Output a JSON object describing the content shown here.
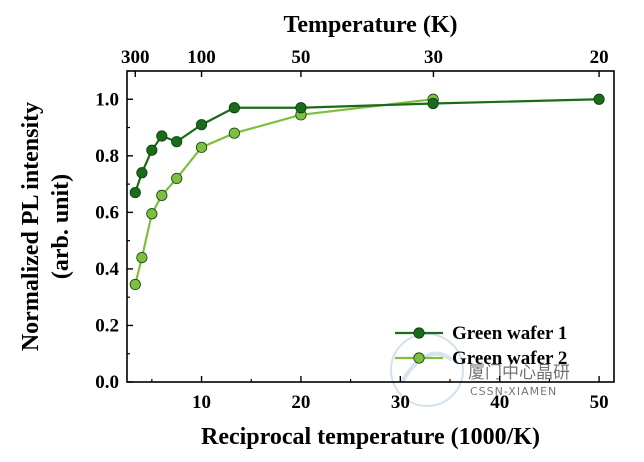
{
  "chart_data": {
    "type": "line",
    "title": "",
    "xlabel": "Reciprocal temperature (1000/K)",
    "ylabel": "Normalized PL intensity (arb. unit)",
    "ylabel_lines": [
      "Normalized PL intensity",
      "(arb. unit)"
    ],
    "top_xlabel": "Temperature (K)",
    "xlim": [
      2.5,
      51.5
    ],
    "ylim": [
      0.0,
      1.1
    ],
    "x_ticks": [
      10,
      20,
      30,
      40,
      50
    ],
    "y_ticks": [
      0.0,
      0.2,
      0.4,
      0.6,
      0.8,
      1.0
    ],
    "y_tick_labels": [
      "0.0",
      "0.2",
      "0.4",
      "0.6",
      "0.8",
      "1.0"
    ],
    "top_ticks": [
      {
        "label": "300",
        "value": 300
      },
      {
        "label": "100",
        "value": 100
      },
      {
        "label": "50",
        "value": 50
      },
      {
        "label": "30",
        "value": 30
      },
      {
        "label": "20",
        "value": 20
      }
    ],
    "grid": false,
    "legend_position": "bottom-right",
    "series": [
      {
        "name": "Green wafer 1",
        "color": "#1a6b1a",
        "x": [
          3.33,
          4.0,
          5.0,
          6.0,
          7.5,
          10.0,
          13.3,
          20.0,
          33.3,
          50.0
        ],
        "y": [
          0.67,
          0.74,
          0.82,
          0.87,
          0.85,
          0.91,
          0.97,
          0.97,
          0.985,
          1.0
        ]
      },
      {
        "name": "Green wafer 2",
        "color": "#7fbf3f",
        "x": [
          3.33,
          4.0,
          5.0,
          6.0,
          7.5,
          10.0,
          13.3,
          20.0,
          33.3
        ],
        "y": [
          0.345,
          0.44,
          0.595,
          0.66,
          0.72,
          0.83,
          0.88,
          0.945,
          1.0
        ]
      }
    ]
  },
  "watermark": {
    "line1": "厦门中心晶研",
    "line2": "CSSN-XIAMEN",
    "color": "#9bbcd8"
  }
}
